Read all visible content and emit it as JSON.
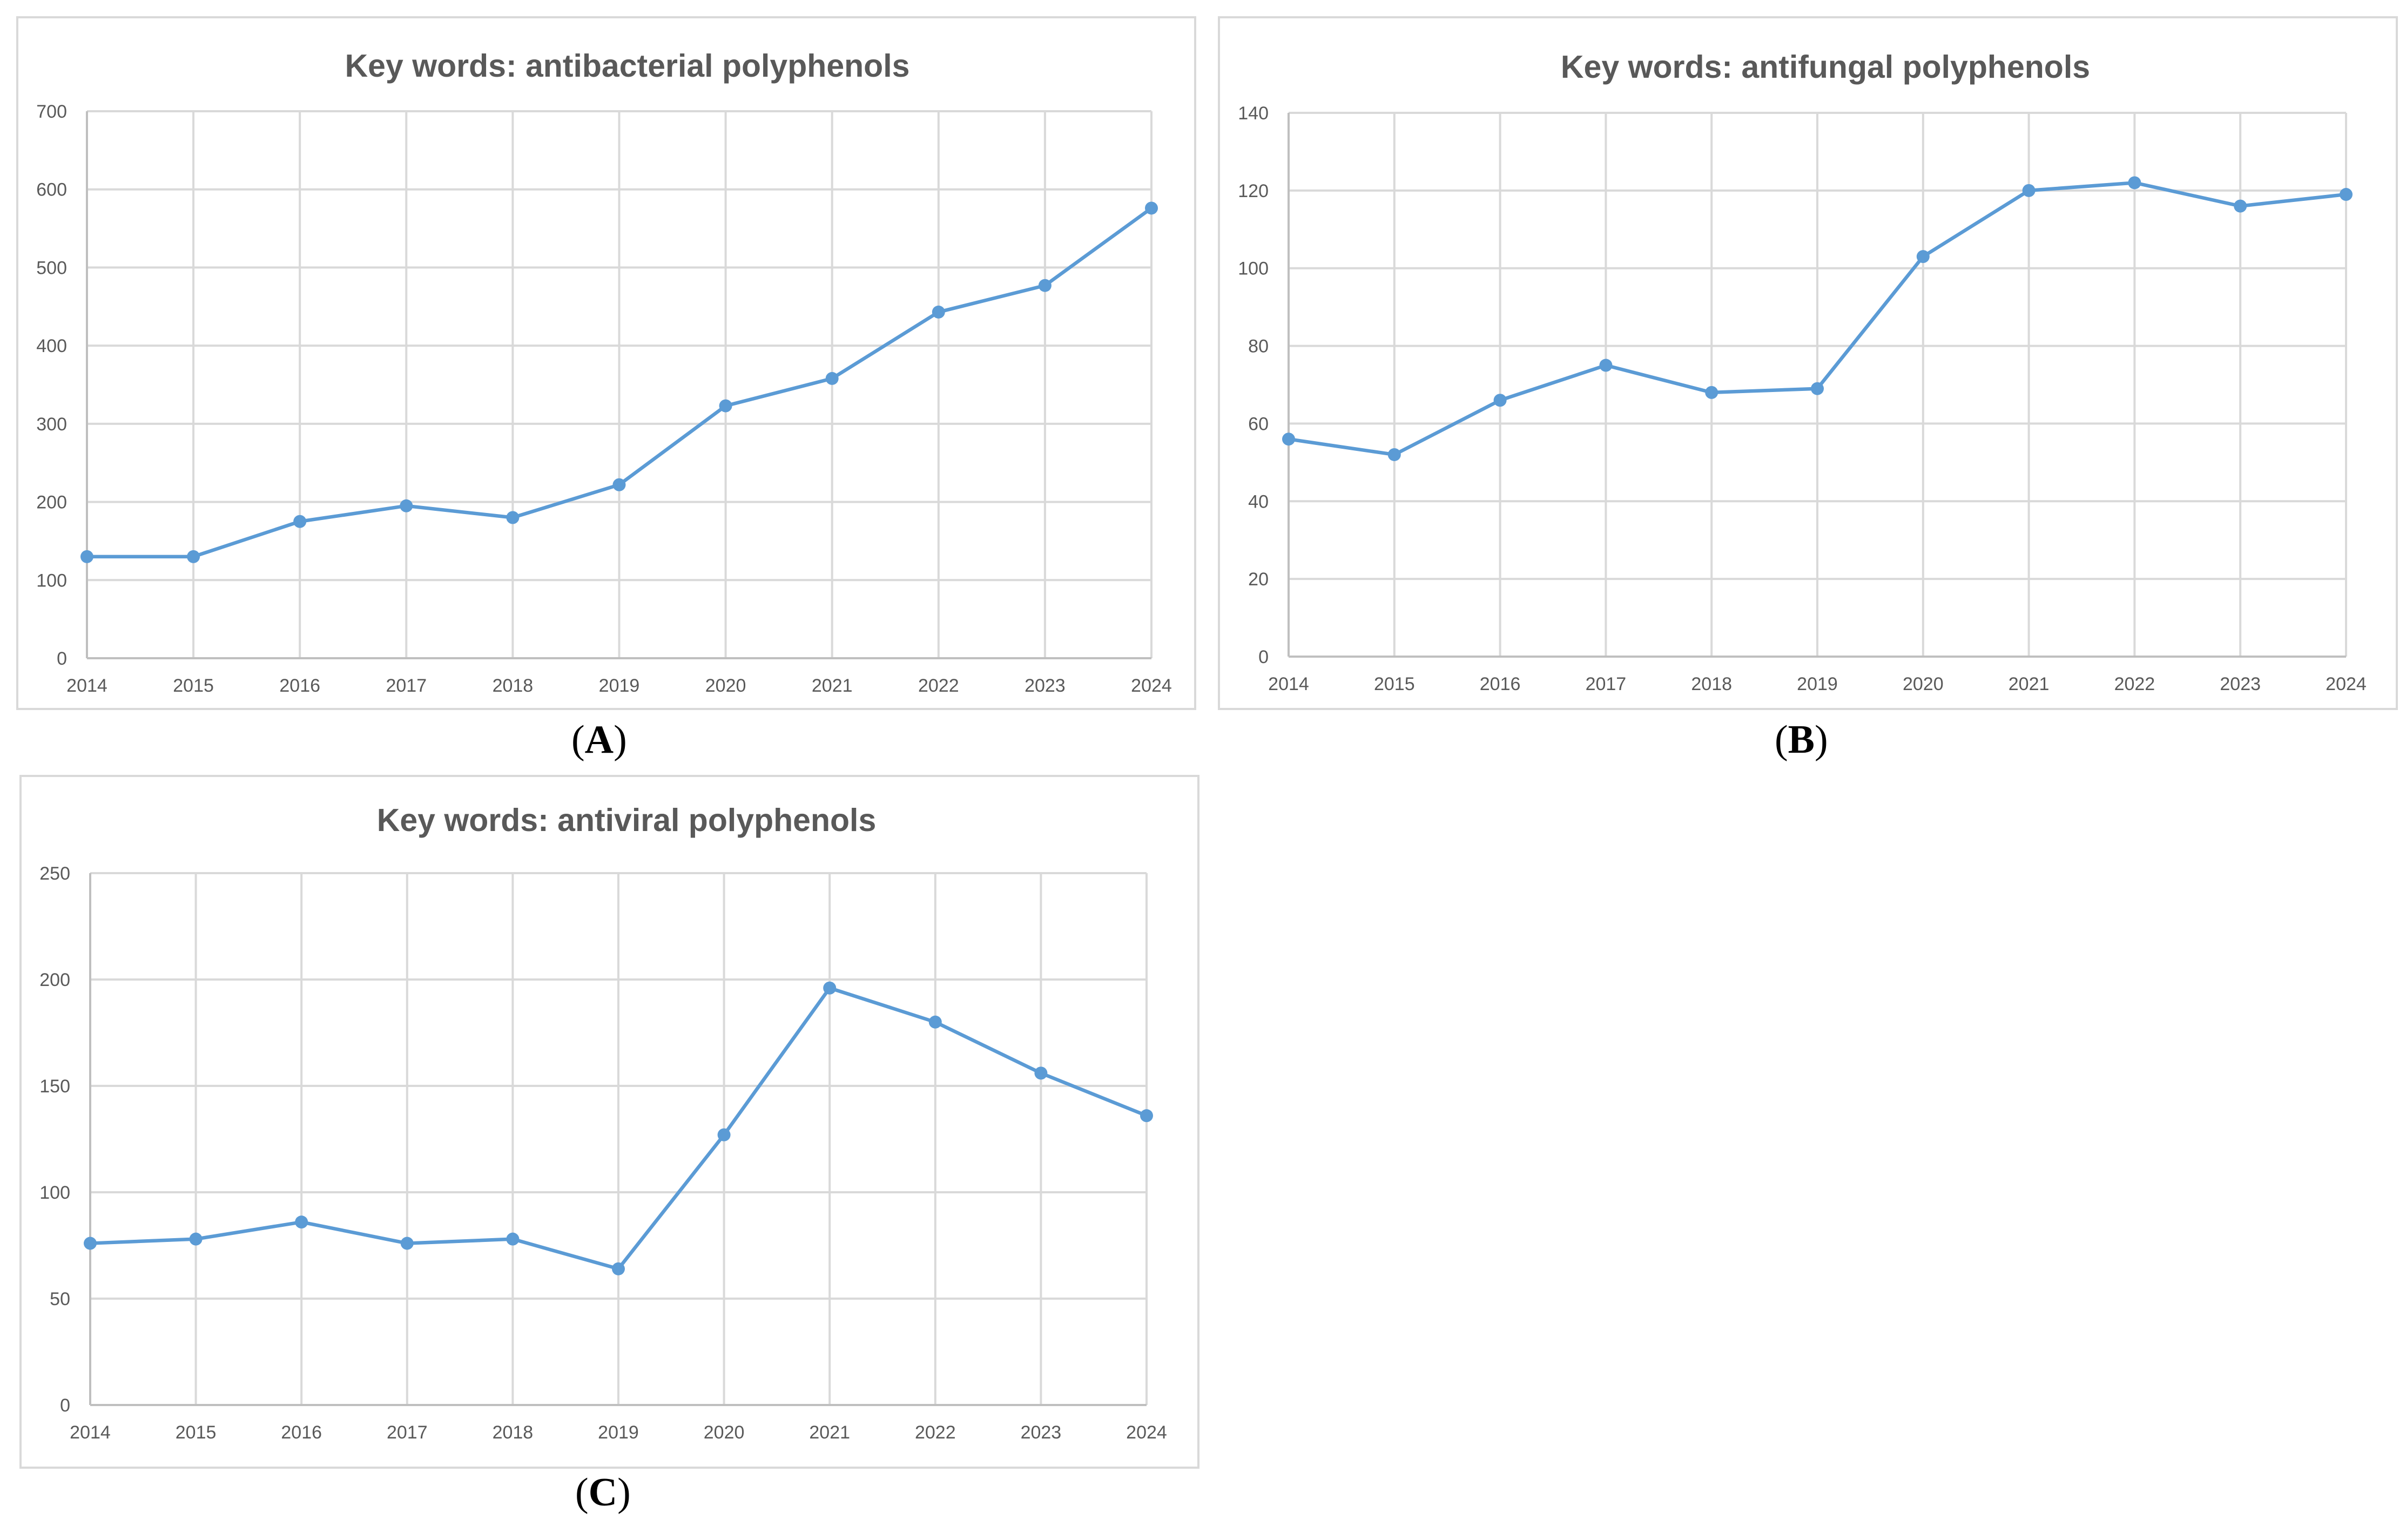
{
  "chart_data": [
    {
      "type": "line",
      "title": "Key words: antibacterial polyphenols",
      "panel_label": "A",
      "xlabel": "",
      "ylabel": "",
      "categories": [
        "2014",
        "2015",
        "2016",
        "2017",
        "2018",
        "2019",
        "2020",
        "2021",
        "2022",
        "2023",
        "2024"
      ],
      "values": [
        130,
        130,
        175,
        195,
        180,
        222,
        323,
        358,
        443,
        477,
        576
      ],
      "ylim": [
        0,
        700
      ],
      "yticks": [
        0,
        100,
        200,
        300,
        400,
        500,
        600,
        700
      ],
      "grid": true,
      "legend": "none",
      "color": "#5b9bd5"
    },
    {
      "type": "line",
      "title": "Key words: antifungal polyphenols",
      "panel_label": "B",
      "xlabel": "",
      "ylabel": "",
      "categories": [
        "2014",
        "2015",
        "2016",
        "2017",
        "2018",
        "2019",
        "2020",
        "2021",
        "2022",
        "2023",
        "2024"
      ],
      "values": [
        56,
        52,
        66,
        75,
        68,
        69,
        103,
        120,
        122,
        116,
        119
      ],
      "ylim": [
        0,
        140
      ],
      "yticks": [
        0,
        20,
        40,
        60,
        80,
        100,
        120,
        140
      ],
      "grid": true,
      "legend": "none",
      "color": "#5b9bd5"
    },
    {
      "type": "line",
      "title": "Key words: antiviral polyphenols",
      "panel_label": "C",
      "xlabel": "",
      "ylabel": "",
      "categories": [
        "2014",
        "2015",
        "2016",
        "2017",
        "2018",
        "2019",
        "2020",
        "2021",
        "2022",
        "2023",
        "2024"
      ],
      "values": [
        76,
        78,
        86,
        76,
        78,
        64,
        127,
        196,
        180,
        156,
        136
      ],
      "ylim": [
        0,
        250
      ],
      "yticks": [
        0,
        50,
        100,
        150,
        200,
        250
      ],
      "grid": true,
      "legend": "none",
      "color": "#5b9bd5"
    }
  ]
}
